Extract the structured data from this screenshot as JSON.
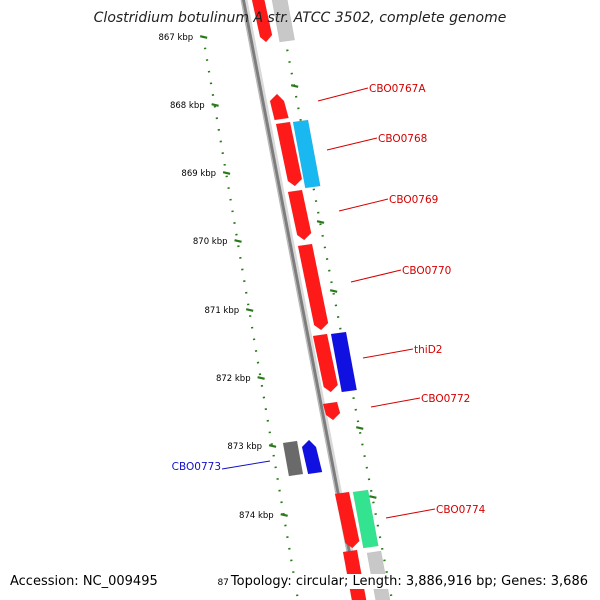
{
  "title": "Clostridium botulinum A str. ATCC 3502, complete genome",
  "accession_text": "Accession: NC_009495",
  "footer_cut_label": "87",
  "topology_text": "Topology: circular; Length: 3,886,916 bp; Genes: 3,686",
  "colors": {
    "red": "#ff1a1a",
    "cyan": "#19b8f0",
    "blue": "#1010e0",
    "gray": "#6a6a6a",
    "green": "#33e38f",
    "light_gray": "#c8c8c8",
    "tick_green": "#2a7a1a",
    "label_red": "#d40000",
    "label_blue": "#1010c8"
  },
  "scale_ticks": [
    "867 kbp",
    "868 kbp",
    "869 kbp",
    "870 kbp",
    "871 kbp",
    "872 kbp",
    "873 kbp",
    "874 kbp"
  ],
  "gene_labels": [
    {
      "id": "CBO0767A",
      "text": "CBO0767A",
      "color": "red"
    },
    {
      "id": "CBO0768",
      "text": "CBO0768",
      "color": "red"
    },
    {
      "id": "CBO0769",
      "text": "CBO0769",
      "color": "red"
    },
    {
      "id": "CBO0770",
      "text": "CBO0770",
      "color": "red"
    },
    {
      "id": "thiD2",
      "text": "thiD2",
      "color": "red"
    },
    {
      "id": "CBO0772",
      "text": "CBO0772",
      "color": "red"
    },
    {
      "id": "CBO0773",
      "text": "CBO0773",
      "color": "blue"
    },
    {
      "id": "CBO0774",
      "text": "CBO0774",
      "color": "red"
    }
  ]
}
